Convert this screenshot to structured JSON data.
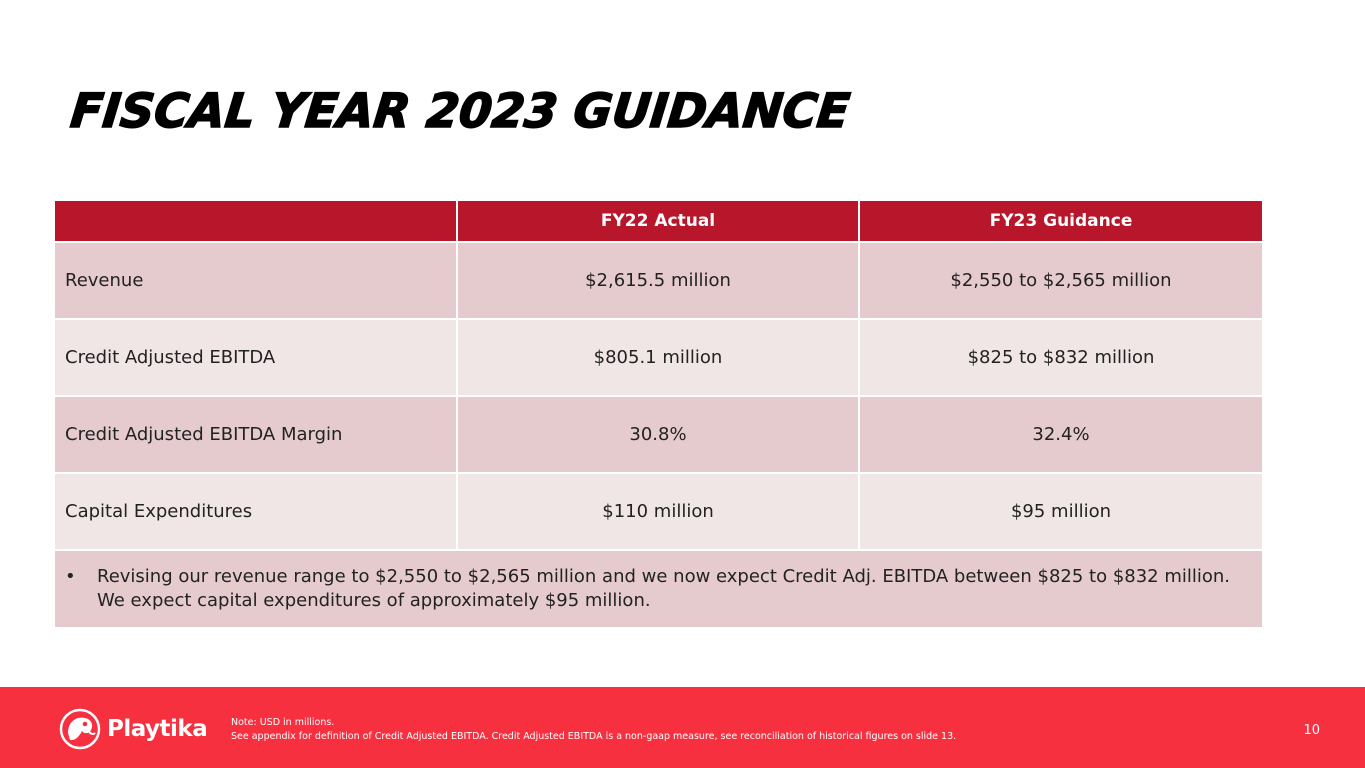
{
  "slide": {
    "title": "FISCAL YEAR 2023 GUIDANCE",
    "page_number": "10"
  },
  "table": {
    "headers": [
      "",
      "FY22 Actual",
      "FY23 Guidance"
    ],
    "rows": [
      {
        "metric": "Revenue",
        "fy22_actual": "$2,615.5 million",
        "fy23_guidance": "$2,550 to $2,565 million"
      },
      {
        "metric": "Credit Adjusted EBITDA",
        "fy22_actual": "$805.1 million",
        "fy23_guidance": "$825 to $832 million"
      },
      {
        "metric": "Credit Adjusted EBITDA Margin",
        "fy22_actual": "30.8%",
        "fy23_guidance": "32.4%"
      },
      {
        "metric": "Capital Expenditures",
        "fy22_actual": "$110 million",
        "fy23_guidance": "$95 million"
      }
    ],
    "commentary": {
      "bullet": "•",
      "text": "Revising our revenue range to $2,550 to $2,565 million and we now expect Credit Adj. EBITDA between $825 to $832 million. We expect capital expenditures of approximately $95 million."
    }
  },
  "footer": {
    "logo_text": "Playtika",
    "note_line1": "Note:  USD in millions.",
    "note_line2": "See appendix for definition of Credit Adjusted EBITDA. Credit Adjusted EBITDA is a non-gaap measure, see reconciliation of historical figures on slide 13."
  },
  "colors": {
    "header_red": "#b8172b",
    "footer_red": "#f73040",
    "row_dark": "#e5cbcd",
    "row_light": "#f1e6e6"
  }
}
